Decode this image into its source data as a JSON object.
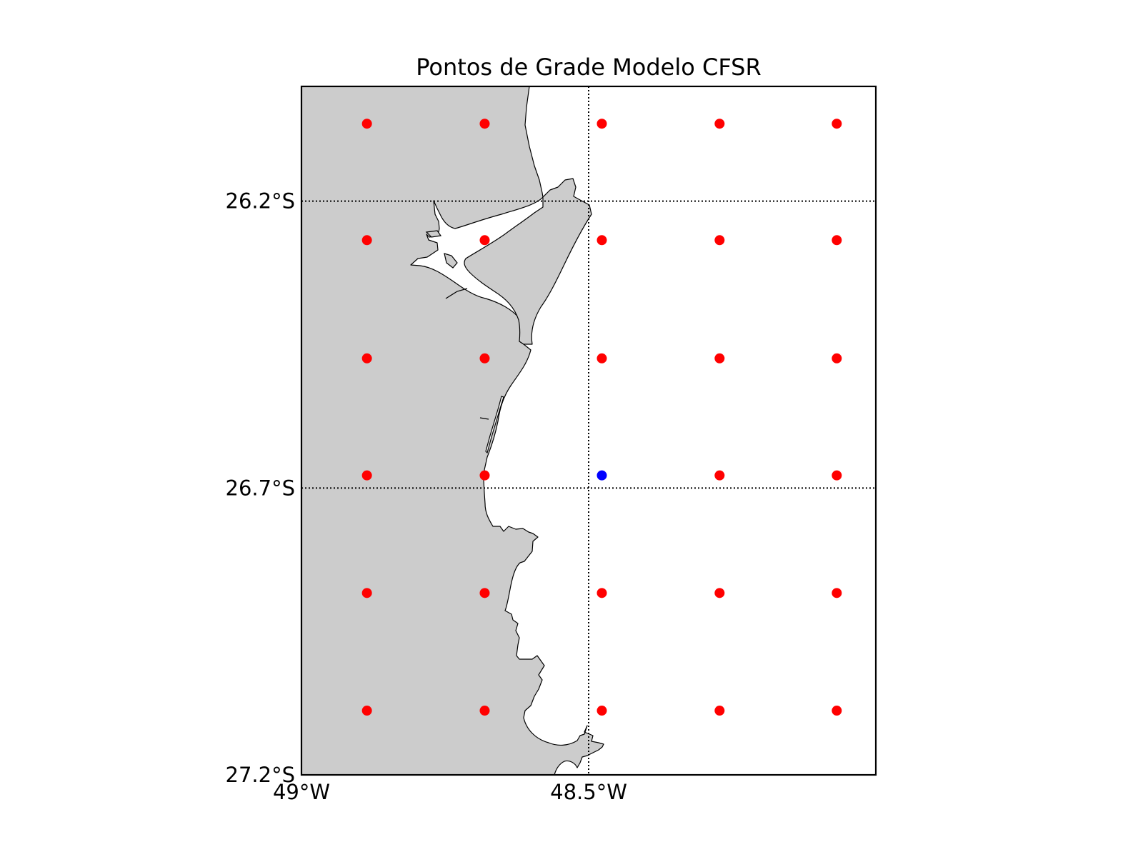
{
  "title": "Pontos de Grade Modelo CFSR",
  "chart_data": {
    "type": "scatter",
    "title": "Pontos de Grade Modelo CFSR",
    "xlim": [
      -49.0,
      -48.0
    ],
    "ylim": [
      -27.2,
      -26.0
    ],
    "x_ticks": [
      {
        "value": -49.0,
        "label": "49°W"
      },
      {
        "value": -48.5,
        "label": "48.5°W"
      }
    ],
    "y_ticks": [
      {
        "value": -26.2,
        "label": "26.2°S"
      },
      {
        "value": -26.7,
        "label": "26.7°S"
      },
      {
        "value": -27.2,
        "label": "27.2°S"
      }
    ],
    "meridians": [
      -48.5
    ],
    "parallels": [
      -26.2,
      -26.7
    ],
    "grid_x": [
      -48.886,
      -48.681,
      -48.477,
      -48.272,
      -48.068
    ],
    "grid_y": [
      -26.065,
      -26.268,
      -26.474,
      -26.678,
      -26.883,
      -27.088
    ],
    "highlight_point": {
      "x": -48.477,
      "y": -26.678
    },
    "colors": {
      "point": "#ff0000",
      "highlight": "#0000ff",
      "land": "#cccccc",
      "ocean": "#ffffff",
      "coastline": "#000000",
      "grid": "#000000"
    }
  }
}
